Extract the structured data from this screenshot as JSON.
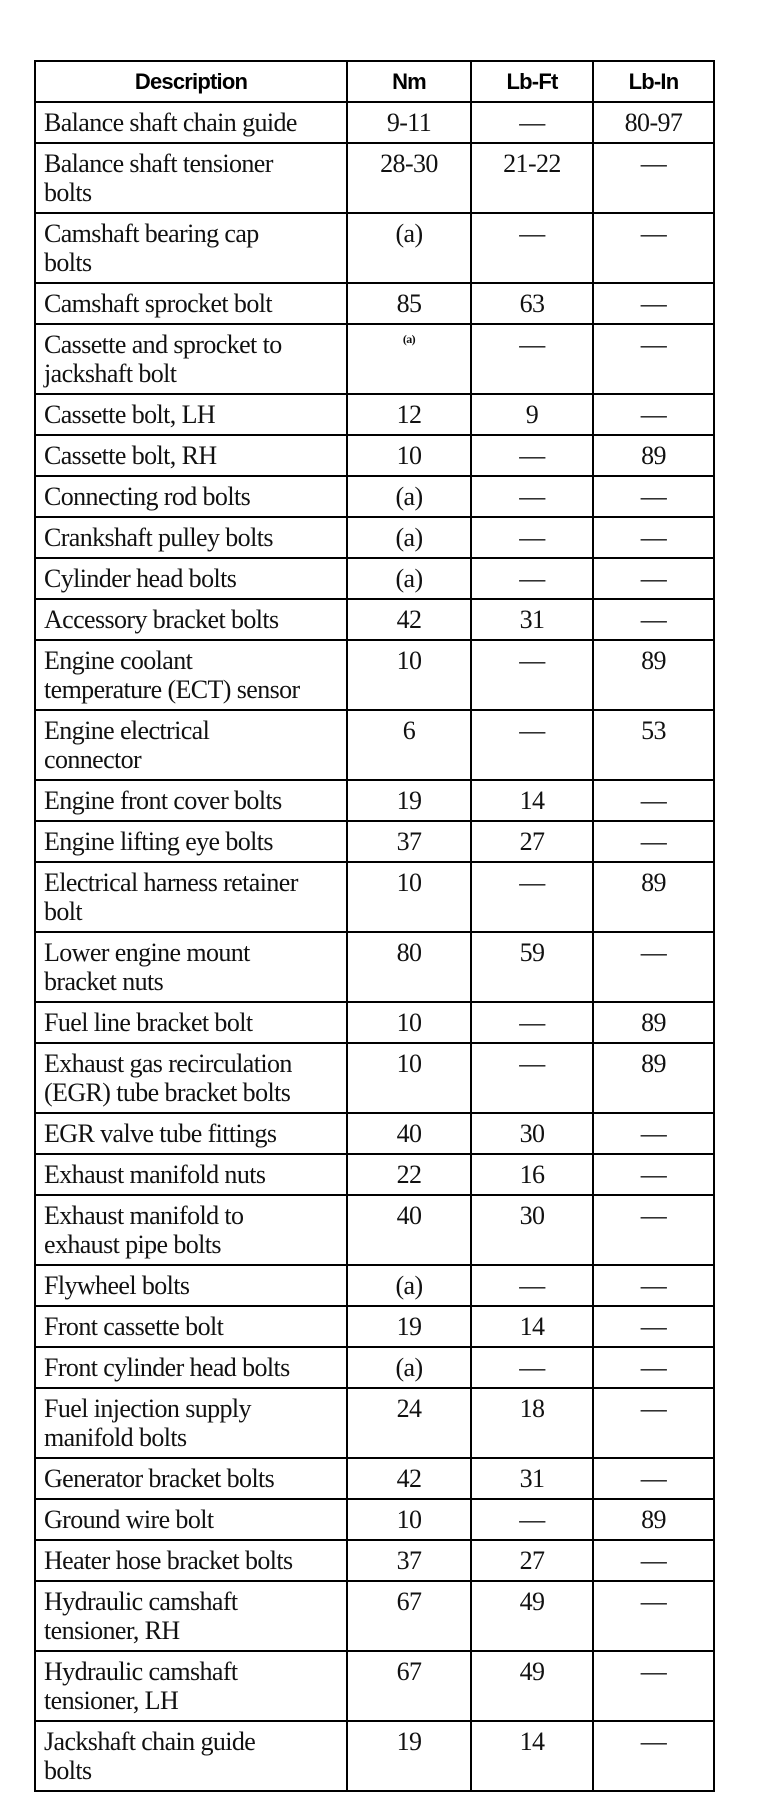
{
  "table": {
    "headers": [
      "Description",
      "Nm",
      "Lb-Ft",
      "Lb-In"
    ],
    "rows": [
      {
        "description": "Balance shaft chain guide",
        "nm": "9-11",
        "lb_ft": "—",
        "lb_in": "80-97"
      },
      {
        "description": "Balance shaft tensioner\nbolts",
        "nm": "28-30",
        "lb_ft": "21-22",
        "lb_in": "—"
      },
      {
        "description": "Camshaft bearing cap\nbolts",
        "nm": "(a)",
        "lb_ft": "—",
        "lb_in": "—"
      },
      {
        "description": "Camshaft sprocket bolt",
        "nm": "85",
        "lb_ft": "63",
        "lb_in": "—"
      },
      {
        "description": "Cassette and sprocket to\njackshaft bolt",
        "nm": "(a)",
        "nm_small": true,
        "lb_ft": "—",
        "lb_in": "—"
      },
      {
        "description": "Cassette bolt, LH",
        "nm": "12",
        "lb_ft": "9",
        "lb_in": "—"
      },
      {
        "description": "Cassette bolt, RH",
        "nm": "10",
        "lb_ft": "—",
        "lb_in": "89"
      },
      {
        "description": "Connecting rod bolts",
        "nm": "(a)",
        "lb_ft": "—",
        "lb_in": "—"
      },
      {
        "description": "Crankshaft pulley bolts",
        "nm": "(a)",
        "lb_ft": "—",
        "lb_in": "—"
      },
      {
        "description": "Cylinder head bolts",
        "nm": "(a)",
        "lb_ft": "—",
        "lb_in": "—"
      },
      {
        "description": "Accessory bracket bolts",
        "nm": "42",
        "lb_ft": "31",
        "lb_in": "—"
      },
      {
        "description": "Engine coolant\ntemperature (ECT) sensor",
        "nm": "10",
        "lb_ft": "—",
        "lb_in": "89"
      },
      {
        "description": "Engine electrical\nconnector",
        "nm": "6",
        "lb_ft": "—",
        "lb_in": "53"
      },
      {
        "description": "Engine front cover bolts",
        "nm": "19",
        "lb_ft": "14",
        "lb_in": "—"
      },
      {
        "description": "Engine lifting eye bolts",
        "nm": "37",
        "lb_ft": "27",
        "lb_in": "—"
      },
      {
        "description": "Electrical harness retainer\nbolt",
        "nm": "10",
        "lb_ft": "—",
        "lb_in": "89"
      },
      {
        "description": "Lower engine mount\nbracket nuts",
        "nm": "80",
        "lb_ft": "59",
        "lb_in": "—"
      },
      {
        "description": "Fuel line bracket bolt",
        "nm": "10",
        "lb_ft": "—",
        "lb_in": "89"
      },
      {
        "description": "Exhaust gas recirculation\n(EGR) tube bracket bolts",
        "nm": "10",
        "lb_ft": "—",
        "lb_in": "89"
      },
      {
        "description": "EGR valve tube fittings",
        "nm": "40",
        "lb_ft": "30",
        "lb_in": "—"
      },
      {
        "description": "Exhaust manifold nuts",
        "nm": "22",
        "lb_ft": "16",
        "lb_in": "—"
      },
      {
        "description": "Exhaust manifold to\nexhaust pipe bolts",
        "nm": "40",
        "lb_ft": "30",
        "lb_in": "—"
      },
      {
        "description": "Flywheel bolts",
        "nm": "(a)",
        "lb_ft": "—",
        "lb_in": "—"
      },
      {
        "description": "Front cassette bolt",
        "nm": "19",
        "lb_ft": "14",
        "lb_in": "—"
      },
      {
        "description": "Front cylinder head bolts",
        "nm": "(a)",
        "lb_ft": "—",
        "lb_in": "—"
      },
      {
        "description": "Fuel injection supply\nmanifold bolts",
        "nm": "24",
        "lb_ft": "18",
        "lb_in": "—"
      },
      {
        "description": "Generator bracket bolts",
        "nm": "42",
        "lb_ft": "31",
        "lb_in": "—"
      },
      {
        "description": "Ground wire bolt",
        "nm": "10",
        "lb_ft": "—",
        "lb_in": "89"
      },
      {
        "description": "Heater hose bracket bolts",
        "nm": "37",
        "lb_ft": "27",
        "lb_in": "—"
      },
      {
        "description": "Hydraulic camshaft\ntensioner, RH",
        "nm": "67",
        "lb_ft": "49",
        "lb_in": "—"
      },
      {
        "description": "Hydraulic camshaft\ntensioner, LH",
        "nm": "67",
        "lb_ft": "49",
        "lb_in": "—"
      },
      {
        "description": "Jackshaft chain guide\nbolts",
        "nm": "19",
        "lb_ft": "14",
        "lb_in": "—"
      }
    ]
  }
}
